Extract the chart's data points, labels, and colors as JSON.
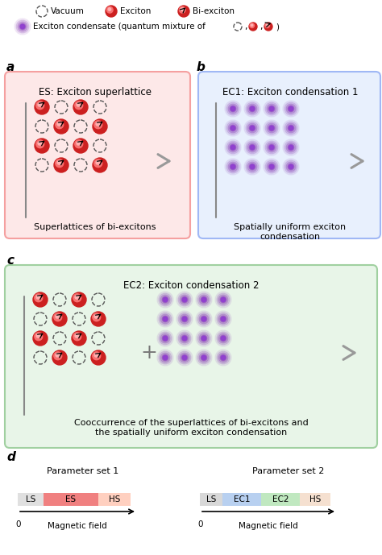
{
  "title": "",
  "background_color": "#ffffff",
  "legend_vacuum": "Vacuum",
  "legend_exciton": "Exciton",
  "legend_biexciton": "Bi-exciton",
  "legend_condensate": "Exciton condensate (quantum mixture of",
  "panel_a_title": "ES: Exciton superlattice",
  "panel_a_caption": "Superlattices of bi-excitons",
  "panel_a_bg": "#fde8e8",
  "panel_a_border": "#f5a0a0",
  "panel_b_title": "EC1: Exciton condensation 1",
  "panel_b_caption": "Spatially uniform exciton\ncondensation",
  "panel_b_bg": "#e8f0fd",
  "panel_b_border": "#a0b8f5",
  "panel_c_title": "EC2: Exciton condensation 2",
  "panel_c_caption": "Cooccurrence of the superlattices of bi-excitons and\nthe spatially uniform exciton condensation",
  "panel_c_bg": "#e8f5e8",
  "panel_c_border": "#a0d0a0",
  "panel_d_label": "d",
  "param_set1": "Parameter set 1",
  "param_set2": "Parameter set 2",
  "bar1_labels": [
    "LS",
    "ES",
    "HS"
  ],
  "bar1_colors": [
    "#e0e0e0",
    "#f08080",
    "#ffd0c0"
  ],
  "bar2_labels": [
    "LS",
    "EC1",
    "EC2",
    "HS"
  ],
  "bar2_colors": [
    "#d8d8d8",
    "#b8d0f0",
    "#c0e8c0",
    "#f5e0d0"
  ],
  "exciton_red": "#cc2020",
  "exciton_mid": "#f87070",
  "exciton_highlight": "#ffb0b0",
  "condensate_color": "#8030b0",
  "condensate_core": "#9040d0",
  "chevron_color": "#999999",
  "bracket_color": "#888888"
}
